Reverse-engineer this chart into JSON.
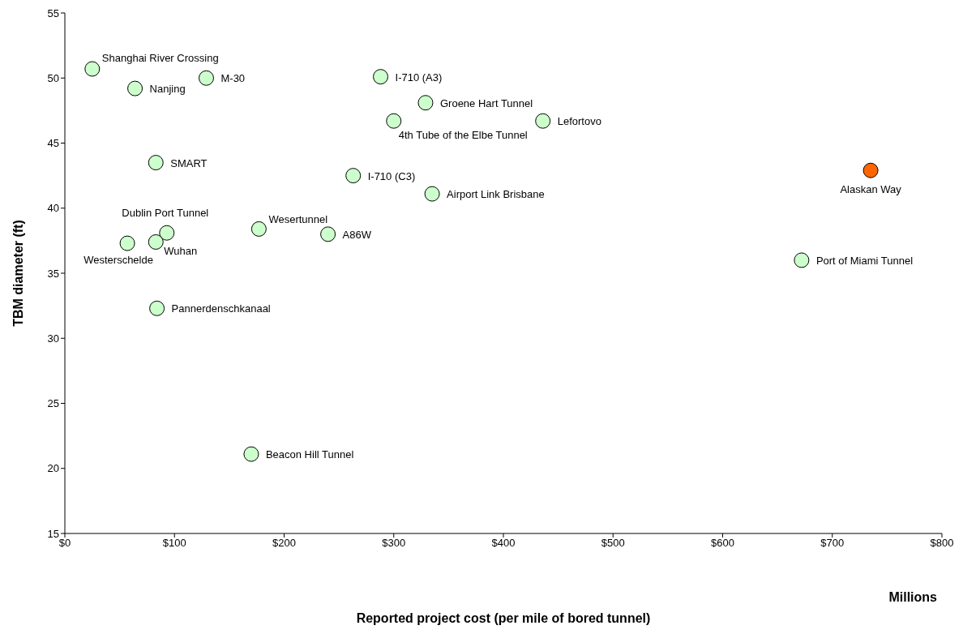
{
  "chart_data": {
    "type": "scatter",
    "xlabel": "Reported project cost (per mile of bored tunnel)",
    "ylabel": "TBM diameter (ft)",
    "x": [
      25,
      64,
      129,
      288,
      329,
      300,
      436,
      83,
      263,
      335,
      735,
      93,
      177,
      240,
      83,
      57,
      672,
      84,
      170
    ],
    "values": [
      50.7,
      49.2,
      50.0,
      50.1,
      48.1,
      46.7,
      46.7,
      43.5,
      42.5,
      41.1,
      42.9,
      38.1,
      38.4,
      38.0,
      37.4,
      37.3,
      36.0,
      32.3,
      21.1
    ],
    "colors": [
      "#ccffcc",
      "#ccffcc",
      "#ccffcc",
      "#ccffcc",
      "#ccffcc",
      "#ccffcc",
      "#ccffcc",
      "#ccffcc",
      "#ccffcc",
      "#ccffcc",
      "#ff6600",
      "#ccffcc",
      "#ccffcc",
      "#ccffcc",
      "#ccffcc",
      "#ccffcc",
      "#ccffcc",
      "#ccffcc",
      "#ccffcc"
    ],
    "xlim": [
      0,
      800
    ],
    "xticks": [
      {
        "value": 0,
        "label": "$0"
      },
      {
        "value": 100,
        "label": "$100"
      },
      {
        "value": 200,
        "label": "$200"
      },
      {
        "value": 300,
        "label": "$300"
      },
      {
        "value": 400,
        "label": "$400"
      },
      {
        "value": 500,
        "label": "$500"
      },
      {
        "value": 600,
        "label": "$600"
      },
      {
        "value": 700,
        "label": "$700"
      },
      {
        "value": 800,
        "label": "$800"
      }
    ],
    "ylim": [
      15,
      55
    ],
    "yticks": [
      15,
      20,
      25,
      30,
      35,
      40,
      45,
      50,
      55
    ],
    "grid": false,
    "legend": false,
    "marker": "circle",
    "annotations": [
      {
        "text": "Shanghai River Crossing",
        "x": 25,
        "y": 50.7
      },
      {
        "text": "Nanjing",
        "x": 64,
        "y": 49.2
      },
      {
        "text": "M-30",
        "x": 129,
        "y": 50.0
      },
      {
        "text": "I-710 (A3)",
        "x": 288,
        "y": 50.1
      },
      {
        "text": "Groene Hart Tunnel",
        "x": 329,
        "y": 48.1
      },
      {
        "text": "4th Tube of the Elbe Tunnel",
        "x": 300,
        "y": 46.7
      },
      {
        "text": "Lefortovo",
        "x": 436,
        "y": 46.7
      },
      {
        "text": "SMART",
        "x": 83,
        "y": 43.5
      },
      {
        "text": "I-710 (C3)",
        "x": 263,
        "y": 42.5
      },
      {
        "text": "Airport Link Brisbane",
        "x": 335,
        "y": 41.1
      },
      {
        "text": "Alaskan Way",
        "x": 735,
        "y": 42.9
      },
      {
        "text": "Dublin Port Tunnel",
        "x": 93,
        "y": 38.1
      },
      {
        "text": "Wesertunnel",
        "x": 177,
        "y": 38.4
      },
      {
        "text": "A86W",
        "x": 240,
        "y": 38.0
      },
      {
        "text": "Wuhan",
        "x": 83,
        "y": 37.4
      },
      {
        "text": "Westerschelde",
        "x": 57,
        "y": 37.3
      },
      {
        "text": "Port of Miami Tunnel",
        "x": 672,
        "y": 36.0
      },
      {
        "text": "Pannerdenschkanaal",
        "x": 84,
        "y": 32.3
      },
      {
        "text": "Beacon Hill Tunnel",
        "x": 170,
        "y": 21.1
      },
      "Millions"
    ]
  }
}
